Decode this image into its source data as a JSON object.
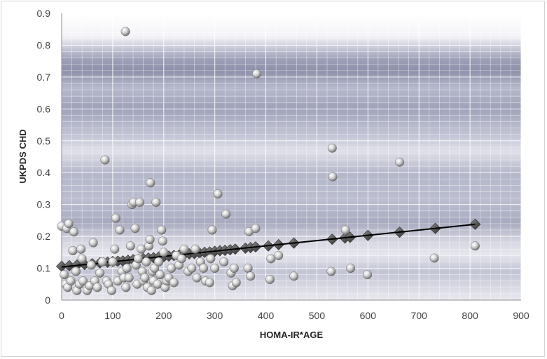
{
  "chart_data": {
    "type": "scatter",
    "xlabel": "HOMA-IR*AGE",
    "ylabel": "UKPDS CHD",
    "xlim": [
      0,
      900
    ],
    "ylim": [
      0,
      0.9
    ],
    "xticks": [
      0,
      100,
      200,
      300,
      400,
      500,
      600,
      700,
      800,
      900
    ],
    "yticks": [
      0,
      0.1,
      0.2,
      0.3,
      0.4,
      0.5,
      0.6,
      0.7,
      0.8,
      0.9
    ],
    "ytick_labels": [
      "0",
      "0.1",
      "0.2",
      "0.3",
      "0.4",
      "0.5",
      "0.6",
      "0.7",
      "0.8",
      "0.9"
    ],
    "grid": true,
    "legend": "none",
    "series": [
      {
        "marker": "sphere",
        "color": "#c8c8c8",
        "points": [
          [
            0,
            0.232
          ],
          [
            10,
            0.225
          ],
          [
            14,
            0.24
          ],
          [
            24,
            0.214
          ],
          [
            5,
            0.08
          ],
          [
            8,
            0.05
          ],
          [
            12,
            0.04
          ],
          [
            18,
            0.06
          ],
          [
            22,
            0.155
          ],
          [
            28,
            0.09
          ],
          [
            30,
            0.03
          ],
          [
            35,
            0.05
          ],
          [
            38,
            0.16
          ],
          [
            40,
            0.13
          ],
          [
            42,
            0.06
          ],
          [
            50,
            0.03
          ],
          [
            55,
            0.045
          ],
          [
            58,
            0.11
          ],
          [
            62,
            0.18
          ],
          [
            65,
            0.06
          ],
          [
            70,
            0.04
          ],
          [
            75,
            0.085
          ],
          [
            80,
            0.12
          ],
          [
            85,
            0.44
          ],
          [
            88,
            0.06
          ],
          [
            92,
            0.05
          ],
          [
            98,
            0.03
          ],
          [
            100,
            0.12
          ],
          [
            104,
            0.16
          ],
          [
            106,
            0.257
          ],
          [
            110,
            0.06
          ],
          [
            114,
            0.22
          ],
          [
            118,
            0.09
          ],
          [
            122,
            0.07
          ],
          [
            125,
            0.843
          ],
          [
            126,
            0.04
          ],
          [
            128,
            0.1
          ],
          [
            132,
            0.07
          ],
          [
            135,
            0.17
          ],
          [
            138,
            0.3
          ],
          [
            141,
            0.307
          ],
          [
            144,
            0.225
          ],
          [
            146,
            0.11
          ],
          [
            148,
            0.05
          ],
          [
            150,
            0.13
          ],
          [
            153,
            0.307
          ],
          [
            156,
            0.16
          ],
          [
            158,
            0.09
          ],
          [
            160,
            0.06
          ],
          [
            163,
            0.07
          ],
          [
            166,
            0.12
          ],
          [
            168,
            0.04
          ],
          [
            171,
            0.17
          ],
          [
            173,
            0.19
          ],
          [
            174,
            0.368
          ],
          [
            176,
            0.03
          ],
          [
            178,
            0.09
          ],
          [
            180,
            0.06
          ],
          [
            182,
            0.1
          ],
          [
            185,
            0.307
          ],
          [
            188,
            0.05
          ],
          [
            190,
            0.12
          ],
          [
            193,
            0.08
          ],
          [
            196,
            0.22
          ],
          [
            198,
            0.185
          ],
          [
            200,
            0.15
          ],
          [
            203,
            0.04
          ],
          [
            206,
            0.06
          ],
          [
            210,
            0.07
          ],
          [
            215,
            0.1
          ],
          [
            220,
            0.055
          ],
          [
            225,
            0.14
          ],
          [
            230,
            0.11
          ],
          [
            235,
            0.13
          ],
          [
            240,
            0.16
          ],
          [
            248,
            0.09
          ],
          [
            255,
            0.1
          ],
          [
            262,
            0.16
          ],
          [
            265,
            0.07
          ],
          [
            272,
            0.12
          ],
          [
            278,
            0.1
          ],
          [
            282,
            0.06
          ],
          [
            290,
            0.055
          ],
          [
            292,
            0.13
          ],
          [
            295,
            0.22
          ],
          [
            300,
            0.1
          ],
          [
            306,
            0.333
          ],
          [
            318,
            0.12
          ],
          [
            322,
            0.27
          ],
          [
            332,
            0.085
          ],
          [
            335,
            0.045
          ],
          [
            338,
            0.1
          ],
          [
            342,
            0.055
          ],
          [
            365,
            0.1
          ],
          [
            367,
            0.215
          ],
          [
            370,
            0.075
          ],
          [
            380,
            0.225
          ],
          [
            382,
            0.71
          ],
          [
            408,
            0.065
          ],
          [
            410,
            0.13
          ],
          [
            425,
            0.14
          ],
          [
            455,
            0.075
          ],
          [
            528,
            0.09
          ],
          [
            530,
            0.477
          ],
          [
            531,
            0.387
          ],
          [
            556,
            0.22
          ],
          [
            566,
            0.1
          ],
          [
            599,
            0.08
          ],
          [
            662,
            0.433
          ],
          [
            730,
            0.132
          ],
          [
            810,
            0.17
          ]
        ]
      },
      {
        "marker": "diamond",
        "color": "#5a5a5a",
        "points": [
          [
            0,
            0.106
          ],
          [
            15,
            0.108
          ],
          [
            30,
            0.11
          ],
          [
            45,
            0.112
          ],
          [
            60,
            0.114
          ],
          [
            75,
            0.117
          ],
          [
            90,
            0.119
          ],
          [
            100,
            0.121
          ],
          [
            110,
            0.122
          ],
          [
            120,
            0.123
          ],
          [
            130,
            0.125
          ],
          [
            140,
            0.127
          ],
          [
            150,
            0.128
          ],
          [
            160,
            0.13
          ],
          [
            170,
            0.132
          ],
          [
            180,
            0.133
          ],
          [
            190,
            0.135
          ],
          [
            200,
            0.136
          ],
          [
            210,
            0.138
          ],
          [
            220,
            0.14
          ],
          [
            230,
            0.141
          ],
          [
            240,
            0.143
          ],
          [
            250,
            0.145
          ],
          [
            260,
            0.146
          ],
          [
            270,
            0.148
          ],
          [
            280,
            0.15
          ],
          [
            290,
            0.151
          ],
          [
            300,
            0.153
          ],
          [
            310,
            0.155
          ],
          [
            320,
            0.156
          ],
          [
            330,
            0.158
          ],
          [
            340,
            0.16
          ],
          [
            360,
            0.163
          ],
          [
            370,
            0.165
          ],
          [
            380,
            0.167
          ],
          [
            405,
            0.17
          ],
          [
            425,
            0.174
          ],
          [
            455,
            0.179
          ],
          [
            530,
            0.191
          ],
          [
            555,
            0.195
          ],
          [
            565,
            0.197
          ],
          [
            600,
            0.203
          ],
          [
            662,
            0.213
          ],
          [
            732,
            0.225
          ],
          [
            810,
            0.238
          ]
        ]
      }
    ],
    "trendline": {
      "x": [
        0,
        810
      ],
      "y": [
        0.104,
        0.238
      ],
      "color": "#000000"
    }
  }
}
